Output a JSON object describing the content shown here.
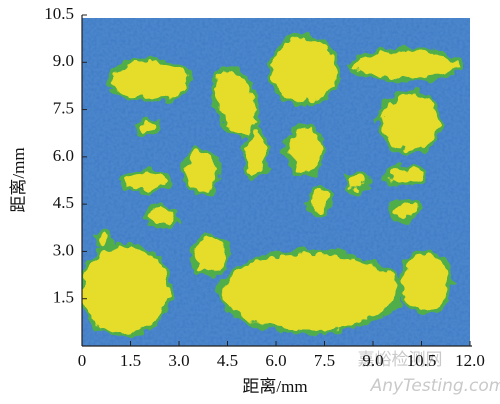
{
  "chart_data": {
    "type": "heatmap",
    "x_label": "距离/mm",
    "y_label": "距离/mm",
    "xlim": [
      0,
      12
    ],
    "ylim": [
      0,
      10.5
    ],
    "xticks": [
      0,
      1.5,
      {
        "value": 3,
        "label": "3.0"
      },
      4.5,
      {
        "value": 6,
        "label": "6.0"
      },
      7.5,
      {
        "value": 9,
        "label": "9.0"
      },
      10.5,
      {
        "value": 12,
        "label": "12.0"
      }
    ],
    "yticks": [
      1.5,
      {
        "value": 3,
        "label": "3.0"
      },
      4.5,
      {
        "value": 6,
        "label": "6.0"
      },
      7.5,
      {
        "value": 9,
        "label": "9.0"
      },
      10.5
    ],
    "watermark": [
      "嘉峪检测网",
      "AnyTesting.com"
    ]
  }
}
